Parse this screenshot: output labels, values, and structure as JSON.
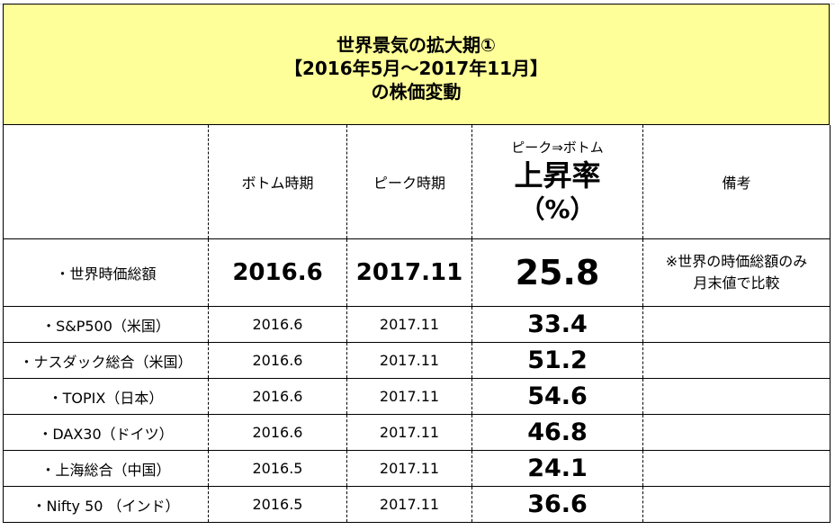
{
  "title": {
    "line1": "世界景気の拡大期①",
    "line2": "【2016年5月～2017年11月】",
    "line3": "の株価変動"
  },
  "header": {
    "bottom_period": "ボトム時期",
    "peak_period": "ピーク時期",
    "rise_sub": "ピーク⇒ボトム",
    "rise_main": "上昇率",
    "rise_unit": "（%）",
    "remarks": "備考"
  },
  "world": {
    "name": "・世界時価総額",
    "bottom": "2016.6",
    "peak": "2017.11",
    "rate": "25.8",
    "note_line1": "※世界の時価総額のみ",
    "note_line2": "月末値で比較"
  },
  "rows": [
    {
      "name": "・S&P500（米国）",
      "bottom": "2016.6",
      "peak": "2017.11",
      "rate": "33.4"
    },
    {
      "name": "・ナスダック総合（米国）",
      "bottom": "2016.6",
      "peak": "2017.11",
      "rate": "51.2"
    },
    {
      "name": "・TOPIX（日本）",
      "bottom": "2016.6",
      "peak": "2017.11",
      "rate": "54.6"
    },
    {
      "name": "・DAX30（ドイツ）",
      "bottom": "2016.6",
      "peak": "2017.11",
      "rate": "46.8"
    },
    {
      "name": "・上海総合（中国）",
      "bottom": "2016.5",
      "peak": "2017.11",
      "rate": "24.1"
    },
    {
      "name": "・Nifty 50 （インド）",
      "bottom": "2016.5",
      "peak": "2017.11",
      "rate": "36.6"
    }
  ]
}
